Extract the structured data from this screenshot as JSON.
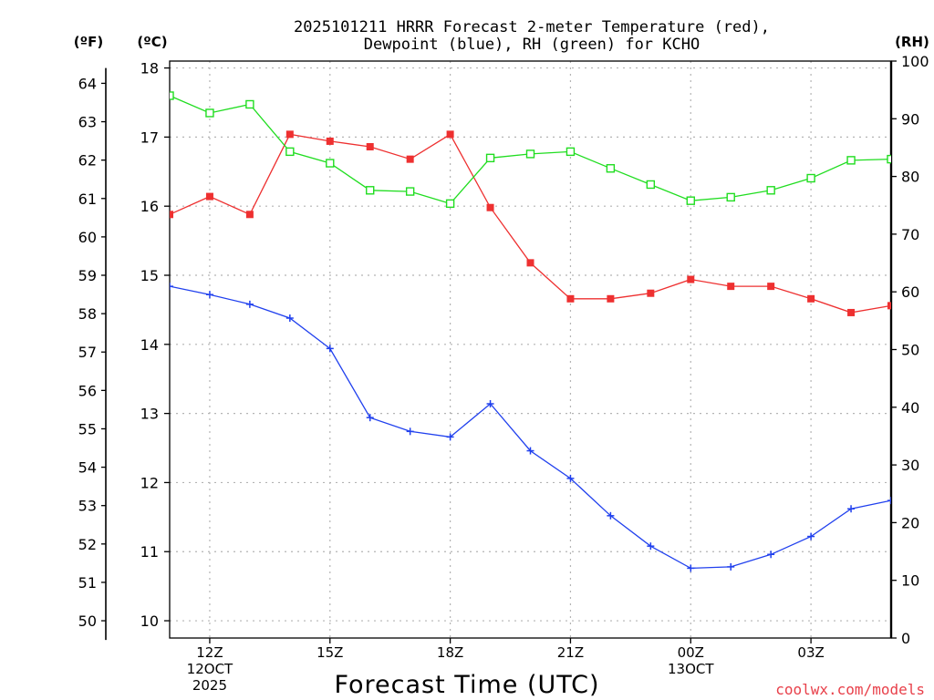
{
  "chart_data": {
    "type": "line",
    "title_line1": "2025101211 HRRR Forecast 2-meter Temperature (red),",
    "title_line2": "Dewpoint (blue), RH (green) for KCHO",
    "xlabel": "Forecast Time (UTC)",
    "credit": "coolwx.com/models",
    "unit_labels": {
      "left_f": "(ºF)",
      "left_c": "(ºC)",
      "right_rh": "(RH)"
    },
    "x_hours": [
      11,
      12,
      13,
      14,
      15,
      16,
      17,
      18,
      19,
      20,
      21,
      22,
      23,
      24,
      25,
      26,
      27,
      28,
      29
    ],
    "xlim": [
      11,
      29
    ],
    "x_ticks": [
      {
        "hour": 12,
        "lines": [
          "12Z",
          "12OCT",
          "2025"
        ]
      },
      {
        "hour": 15,
        "lines": [
          "15Z"
        ]
      },
      {
        "hour": 18,
        "lines": [
          "18Z"
        ]
      },
      {
        "hour": 21,
        "lines": [
          "21Z"
        ]
      },
      {
        "hour": 24,
        "lines": [
          "00Z",
          "13OCT"
        ]
      },
      {
        "hour": 27,
        "lines": [
          "03Z"
        ]
      }
    ],
    "y_celsius": {
      "range": [
        9.75,
        18.1
      ],
      "ticks": [
        10,
        11,
        12,
        13,
        14,
        15,
        16,
        17,
        18
      ]
    },
    "y_fahrenheit": {
      "ticks": [
        50,
        51,
        52,
        53,
        54,
        55,
        56,
        57,
        58,
        59,
        60,
        61,
        62,
        63,
        64
      ]
    },
    "y_rh": {
      "range": [
        0,
        100
      ],
      "ticks": [
        0,
        10,
        20,
        30,
        40,
        50,
        60,
        70,
        80,
        90,
        100
      ]
    },
    "series": [
      {
        "name": "Temperature",
        "axis": "celsius",
        "color": "#ee3030",
        "marker": "filled-square",
        "values": [
          15.88,
          16.14,
          15.88,
          17.04,
          16.94,
          16.86,
          16.68,
          17.04,
          15.98,
          15.18,
          14.66,
          14.66,
          14.74,
          14.94,
          14.84,
          14.84,
          14.66,
          14.46,
          14.56
        ]
      },
      {
        "name": "Dewpoint",
        "axis": "celsius",
        "color": "#2040ee",
        "marker": "plus",
        "values": [
          14.84,
          14.72,
          14.58,
          14.38,
          13.94,
          12.94,
          12.74,
          12.66,
          13.14,
          12.46,
          12.06,
          11.52,
          11.08,
          10.76,
          10.78,
          10.96,
          11.22,
          11.62,
          11.74
        ]
      },
      {
        "name": "RH",
        "axis": "rh",
        "color": "#20dd20",
        "marker": "open-square",
        "values": [
          94.0,
          91.0,
          92.5,
          84.3,
          82.3,
          77.6,
          77.4,
          75.3,
          83.2,
          83.9,
          84.3,
          81.4,
          78.6,
          75.8,
          76.4,
          77.6,
          79.7,
          82.8,
          83.0
        ]
      }
    ]
  }
}
